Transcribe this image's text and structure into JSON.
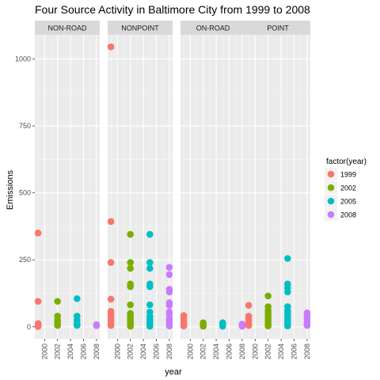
{
  "chart_data": {
    "type": "scatter",
    "title": "Four Source Activity in Baltimore City from 1999 to 2008",
    "xlabel": "year",
    "ylabel": "Emissions",
    "facets": [
      "NON-ROAD",
      "NONPOINT",
      "ON-ROAD",
      "POINT"
    ],
    "x_ticks": [
      "2000",
      "2002",
      "2004",
      "2006",
      "2008"
    ],
    "y_ticks": [
      0,
      250,
      500,
      750,
      1000
    ],
    "xlim": [
      1998.5,
      2008.5
    ],
    "ylim": [
      -45,
      1090
    ],
    "legend": {
      "title": "factor(year)",
      "position": "right",
      "entries": [
        {
          "label": "1999",
          "color": "#F8766D"
        },
        {
          "label": "2002",
          "color": "#7CAE00"
        },
        {
          "label": "2005",
          "color": "#00BFC4"
        },
        {
          "label": "2008",
          "color": "#C77CFF"
        }
      ]
    },
    "grid": true,
    "series": [
      {
        "name": "1999",
        "points": {
          "NON-ROAD": [
            350,
            95,
            12,
            8,
            4,
            1
          ],
          "NONPOINT": [
            1045,
            393,
            240,
            103,
            58,
            48,
            35,
            25,
            15,
            5
          ],
          "ON-ROAD": [
            42,
            30,
            20,
            10,
            3
          ],
          "POINT": [
            80,
            40,
            30,
            20,
            10,
            5
          ]
        }
      },
      {
        "name": "2002",
        "points": {
          "NON-ROAD": [
            95,
            40,
            25,
            15,
            5
          ],
          "NONPOINT": [
            345,
            240,
            218,
            160,
            150,
            82,
            50,
            40,
            30,
            20,
            10,
            2
          ],
          "ON-ROAD": [
            15,
            10,
            5,
            2
          ],
          "POINT": [
            115,
            75,
            60,
            50,
            40,
            30,
            20,
            10,
            3
          ]
        }
      },
      {
        "name": "2005",
        "points": {
          "NON-ROAD": [
            105,
            40,
            25,
            12,
            5
          ],
          "NONPOINT": [
            345,
            240,
            218,
            160,
            150,
            82,
            55,
            40,
            30,
            20,
            10,
            2
          ],
          "ON-ROAD": [
            15,
            10,
            5,
            2
          ],
          "POINT": [
            255,
            160,
            145,
            130,
            75,
            60,
            50,
            40,
            30,
            20,
            10,
            3
          ]
        }
      },
      {
        "name": "2008",
        "points": {
          "NON-ROAD": [
            8,
            4
          ],
          "NONPOINT": [
            222,
            195,
            140,
            130,
            90,
            80,
            55,
            45,
            30,
            20,
            10,
            3
          ],
          "ON-ROAD": [
            10,
            5,
            2
          ],
          "POINT": [
            52,
            40,
            30,
            20,
            10,
            5
          ]
        }
      }
    ]
  }
}
